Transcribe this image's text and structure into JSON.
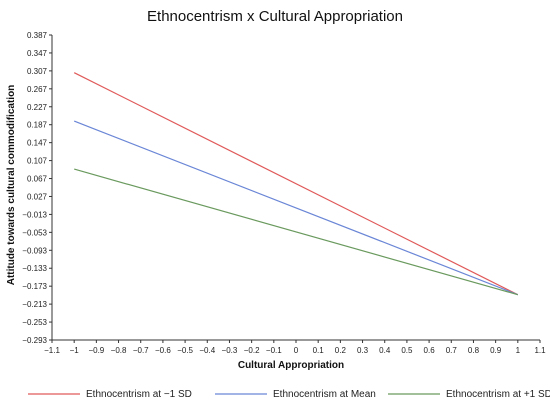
{
  "chart_data": {
    "type": "line",
    "title": "Ethnocentrism x Cultural Appropriation",
    "xlabel": "Cultural Appropriation",
    "ylabel": "Attitude towards cultural commodification",
    "xlim": [
      -1.1,
      1.1
    ],
    "ylim": [
      -0.293,
      0.387
    ],
    "xticks": [
      "−1.1",
      "−1",
      "−0.9",
      "−0.8",
      "−0.7",
      "−0.6",
      "−0.5",
      "−0.4",
      "−0.3",
      "−0.2",
      "−0.1",
      "0",
      "0.1",
      "0.2",
      "0.3",
      "0.4",
      "0.5",
      "0.6",
      "0.7",
      "0.8",
      "0.9",
      "1",
      "1.1"
    ],
    "xtick_values": [
      -1.1,
      -1.0,
      -0.9,
      -0.8,
      -0.7,
      -0.6,
      -0.5,
      -0.4,
      -0.3,
      -0.2,
      -0.1,
      0,
      0.1,
      0.2,
      0.3,
      0.4,
      0.5,
      0.6,
      0.7,
      0.8,
      0.9,
      1.0,
      1.1
    ],
    "yticks": [
      "0.387",
      "0.347",
      "0.307",
      "0.267",
      "0.227",
      "0.187",
      "0.147",
      "0.107",
      "0.067",
      "0.027",
      "−0.013",
      "−0.053",
      "−0.093",
      "−0.133",
      "−0.173",
      "−0.213",
      "−0.253",
      "−0.293"
    ],
    "ytick_values": [
      0.387,
      0.347,
      0.307,
      0.267,
      0.227,
      0.187,
      0.147,
      0.107,
      0.067,
      0.027,
      -0.013,
      -0.053,
      -0.093,
      -0.133,
      -0.173,
      -0.213,
      -0.253,
      -0.293
    ],
    "grid": false,
    "legend_position": "bottom",
    "series": [
      {
        "name": "Ethnocentrism at −1 SD",
        "color": "#e05a5a",
        "x": [
          -1,
          1
        ],
        "y": [
          0.303,
          -0.192
        ]
      },
      {
        "name": "Ethnocentrism at Mean",
        "color": "#6a86d6",
        "x": [
          -1,
          1
        ],
        "y": [
          0.195,
          -0.192
        ]
      },
      {
        "name": "Ethnocentrism at +1 SD",
        "color": "#6a9a5e",
        "x": [
          -1,
          1
        ],
        "y": [
          0.088,
          -0.192
        ]
      }
    ]
  }
}
